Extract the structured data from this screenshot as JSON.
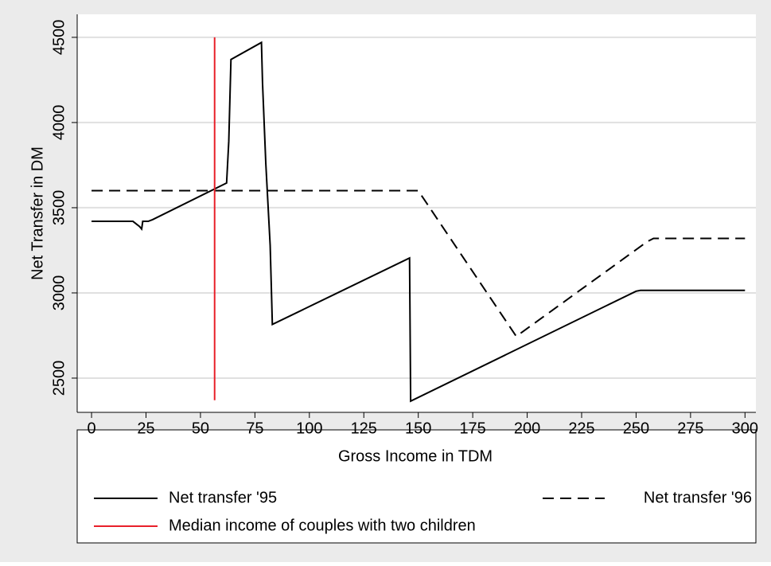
{
  "chart_data": {
    "type": "line",
    "x_label": "Gross Income in TDM",
    "y_label": "Net Transfer in DM",
    "xlim": [
      -6.6,
      305
    ],
    "ylim": [
      2299,
      4635
    ],
    "xticks": [
      0,
      25,
      50,
      75,
      100,
      125,
      150,
      175,
      200,
      225,
      250,
      275,
      300
    ],
    "yticks": [
      2500,
      3000,
      3500,
      4000,
      4500
    ],
    "grid": true,
    "series": [
      {
        "name": "Net transfer '95",
        "color": "#000000",
        "dash": "solid",
        "x": [
          0,
          19,
          22,
          23,
          23.5,
          26,
          28,
          62,
          63,
          63.5,
          64,
          78,
          78.5,
          80,
          81,
          82,
          82.5,
          83,
          146,
          146.5,
          250,
          252,
          300
        ],
        "values": [
          3420,
          3420,
          3390,
          3375,
          3420,
          3420,
          3430,
          3645,
          3890,
          4130,
          4370,
          4470,
          4230,
          3760,
          3520,
          3280,
          3050,
          2815,
          3205,
          2365,
          3010,
          3015,
          3015
        ]
      },
      {
        "name": "Net transfer '96",
        "color": "#000000",
        "dash": "dashed",
        "x": [
          0,
          150,
          195,
          255,
          258,
          300
        ],
        "values": [
          3600,
          3600,
          2745,
          3300,
          3320,
          3320
        ]
      },
      {
        "name": "Median income of couples with two children",
        "color": "#e8202a",
        "dash": "solid",
        "x": [
          56.5,
          56.5
        ],
        "values": [
          4500,
          2370
        ]
      }
    ]
  }
}
